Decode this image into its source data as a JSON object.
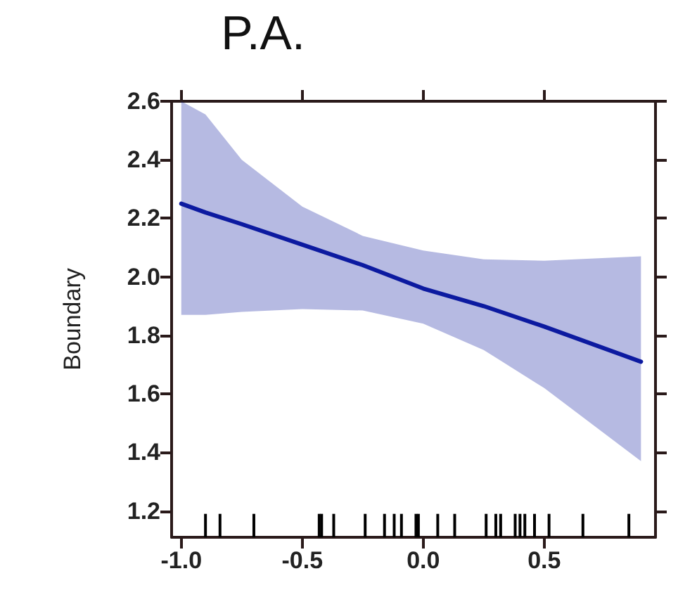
{
  "chart_data": {
    "type": "line",
    "title": "P.A.",
    "ylabel": "Boundary",
    "xlim": [
      -1.04,
      0.96
    ],
    "ylim": [
      1.11,
      2.6
    ],
    "xticks": [
      {
        "value": -1,
        "label": "-1.0"
      },
      -0.5,
      {
        "value": 0,
        "label": "0.0"
      },
      0.5
    ],
    "yticks": [
      1.2,
      1.4,
      1.6,
      1.8,
      {
        "value": 2,
        "label": "2.0"
      },
      2.2,
      2.4,
      2.6
    ],
    "grid": false,
    "series": [
      {
        "color": "#0c1aa0",
        "x": [
          -1,
          -0.9,
          -0.75,
          -0.5,
          -0.25,
          0,
          0.25,
          0.5,
          0.9
        ],
        "values": [
          2.25,
          2.22,
          2.18,
          2.11,
          2.04,
          1.96,
          1.9,
          1.83,
          1.71
        ],
        "lower": [
          1.87,
          1.87,
          1.88,
          1.89,
          1.885,
          1.84,
          1.75,
          1.62,
          1.37
        ],
        "upper": [
          2.6,
          2.555,
          2.4,
          2.24,
          2.14,
          2.09,
          2.06,
          2.055,
          2.07
        ]
      },
      {
        "type": "bar",
        "color": "#000000",
        "x": [
          -0.9,
          -0.84,
          -0.7,
          -0.43,
          -0.42,
          -0.37,
          -0.24,
          -0.16,
          -0.12,
          -0.09,
          -0.03,
          -0.02,
          0.06,
          0.13,
          0.26,
          0.3,
          0.32,
          0.38,
          0.4,
          0.42,
          0.46,
          0.52,
          0.66,
          0.85
        ],
        "values": [
          1.19,
          1.19,
          1.19,
          1.19,
          1.19,
          1.19,
          1.19,
          1.19,
          1.19,
          1.19,
          1.19,
          1.19,
          1.19,
          1.19,
          1.19,
          1.19,
          1.19,
          1.19,
          1.19,
          1.19,
          1.19,
          1.19,
          1.19,
          1.19
        ]
      }
    ]
  }
}
